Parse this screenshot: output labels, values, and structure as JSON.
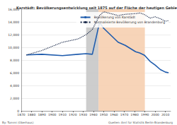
{
  "chart_data": {
    "type": "line",
    "title": "Karstädt: Bevölkerungsentwicklung seit 1875 auf der Fläche der heutigen Gebietskörperschaft",
    "series": [
      {
        "name": "Bevölkerung von Karstädt",
        "color": "#1f5cad",
        "line_style": "solid",
        "x": [
          1875,
          1890,
          1910,
          1925,
          1933,
          1939,
          1946,
          1950,
          1964,
          1971,
          1981,
          1985,
          1989,
          1990,
          1995,
          2000,
          2005,
          2010,
          2013
        ],
        "values": [
          8800,
          8900,
          8700,
          8900,
          9000,
          8900,
          13900,
          13000,
          10800,
          10300,
          9300,
          9100,
          8800,
          8700,
          7800,
          7200,
          6500,
          6100,
          6000
        ]
      },
      {
        "name": "Normalisierte Bevölkerung von Brandenburg",
        "color": "#1b2a4a",
        "line_style": "dotted",
        "x": [
          1875,
          1890,
          1910,
          1925,
          1933,
          1939,
          1946,
          1950,
          1964,
          1971,
          1981,
          1985,
          1989,
          1990,
          1995,
          2000,
          2005,
          2010,
          2013
        ],
        "values": [
          8800,
          9500,
          10800,
          11300,
          12000,
          12800,
          15000,
          15600,
          15000,
          15200,
          15300,
          15400,
          15200,
          15100,
          14600,
          14800,
          14500,
          14100,
          14200
        ]
      }
    ],
    "shaded_periods": [
      {
        "from": 1933,
        "to": 1945,
        "color": "#c8c8c8"
      },
      {
        "from": 1945,
        "to": 1990,
        "color": "#f6cfb0"
      }
    ],
    "xlim": [
      1870,
      2015
    ],
    "xticks": [
      1870,
      1880,
      1890,
      1900,
      1910,
      1920,
      1930,
      1940,
      1950,
      1960,
      1970,
      1980,
      1990,
      2000,
      2010
    ],
    "ylim": [
      0,
      16000
    ],
    "yticks": [
      0,
      {
        "value": 2000,
        "label": "2,000"
      },
      {
        "value": 4000,
        "label": "4,000"
      },
      {
        "value": 6000,
        "label": "6,000"
      },
      {
        "value": 8000,
        "label": "8,000"
      },
      {
        "value": 10000,
        "label": "10,000"
      },
      {
        "value": 12000,
        "label": "12,000"
      },
      {
        "value": 14000,
        "label": "14,000"
      },
      {
        "value": 16000,
        "label": "16,000"
      }
    ],
    "grid": true,
    "legend": "upper right",
    "annotations": [
      "Quellen: Amt für Statistik Berlin-Brandenburg",
      "By: Tummi (Oberhaus)"
    ]
  }
}
